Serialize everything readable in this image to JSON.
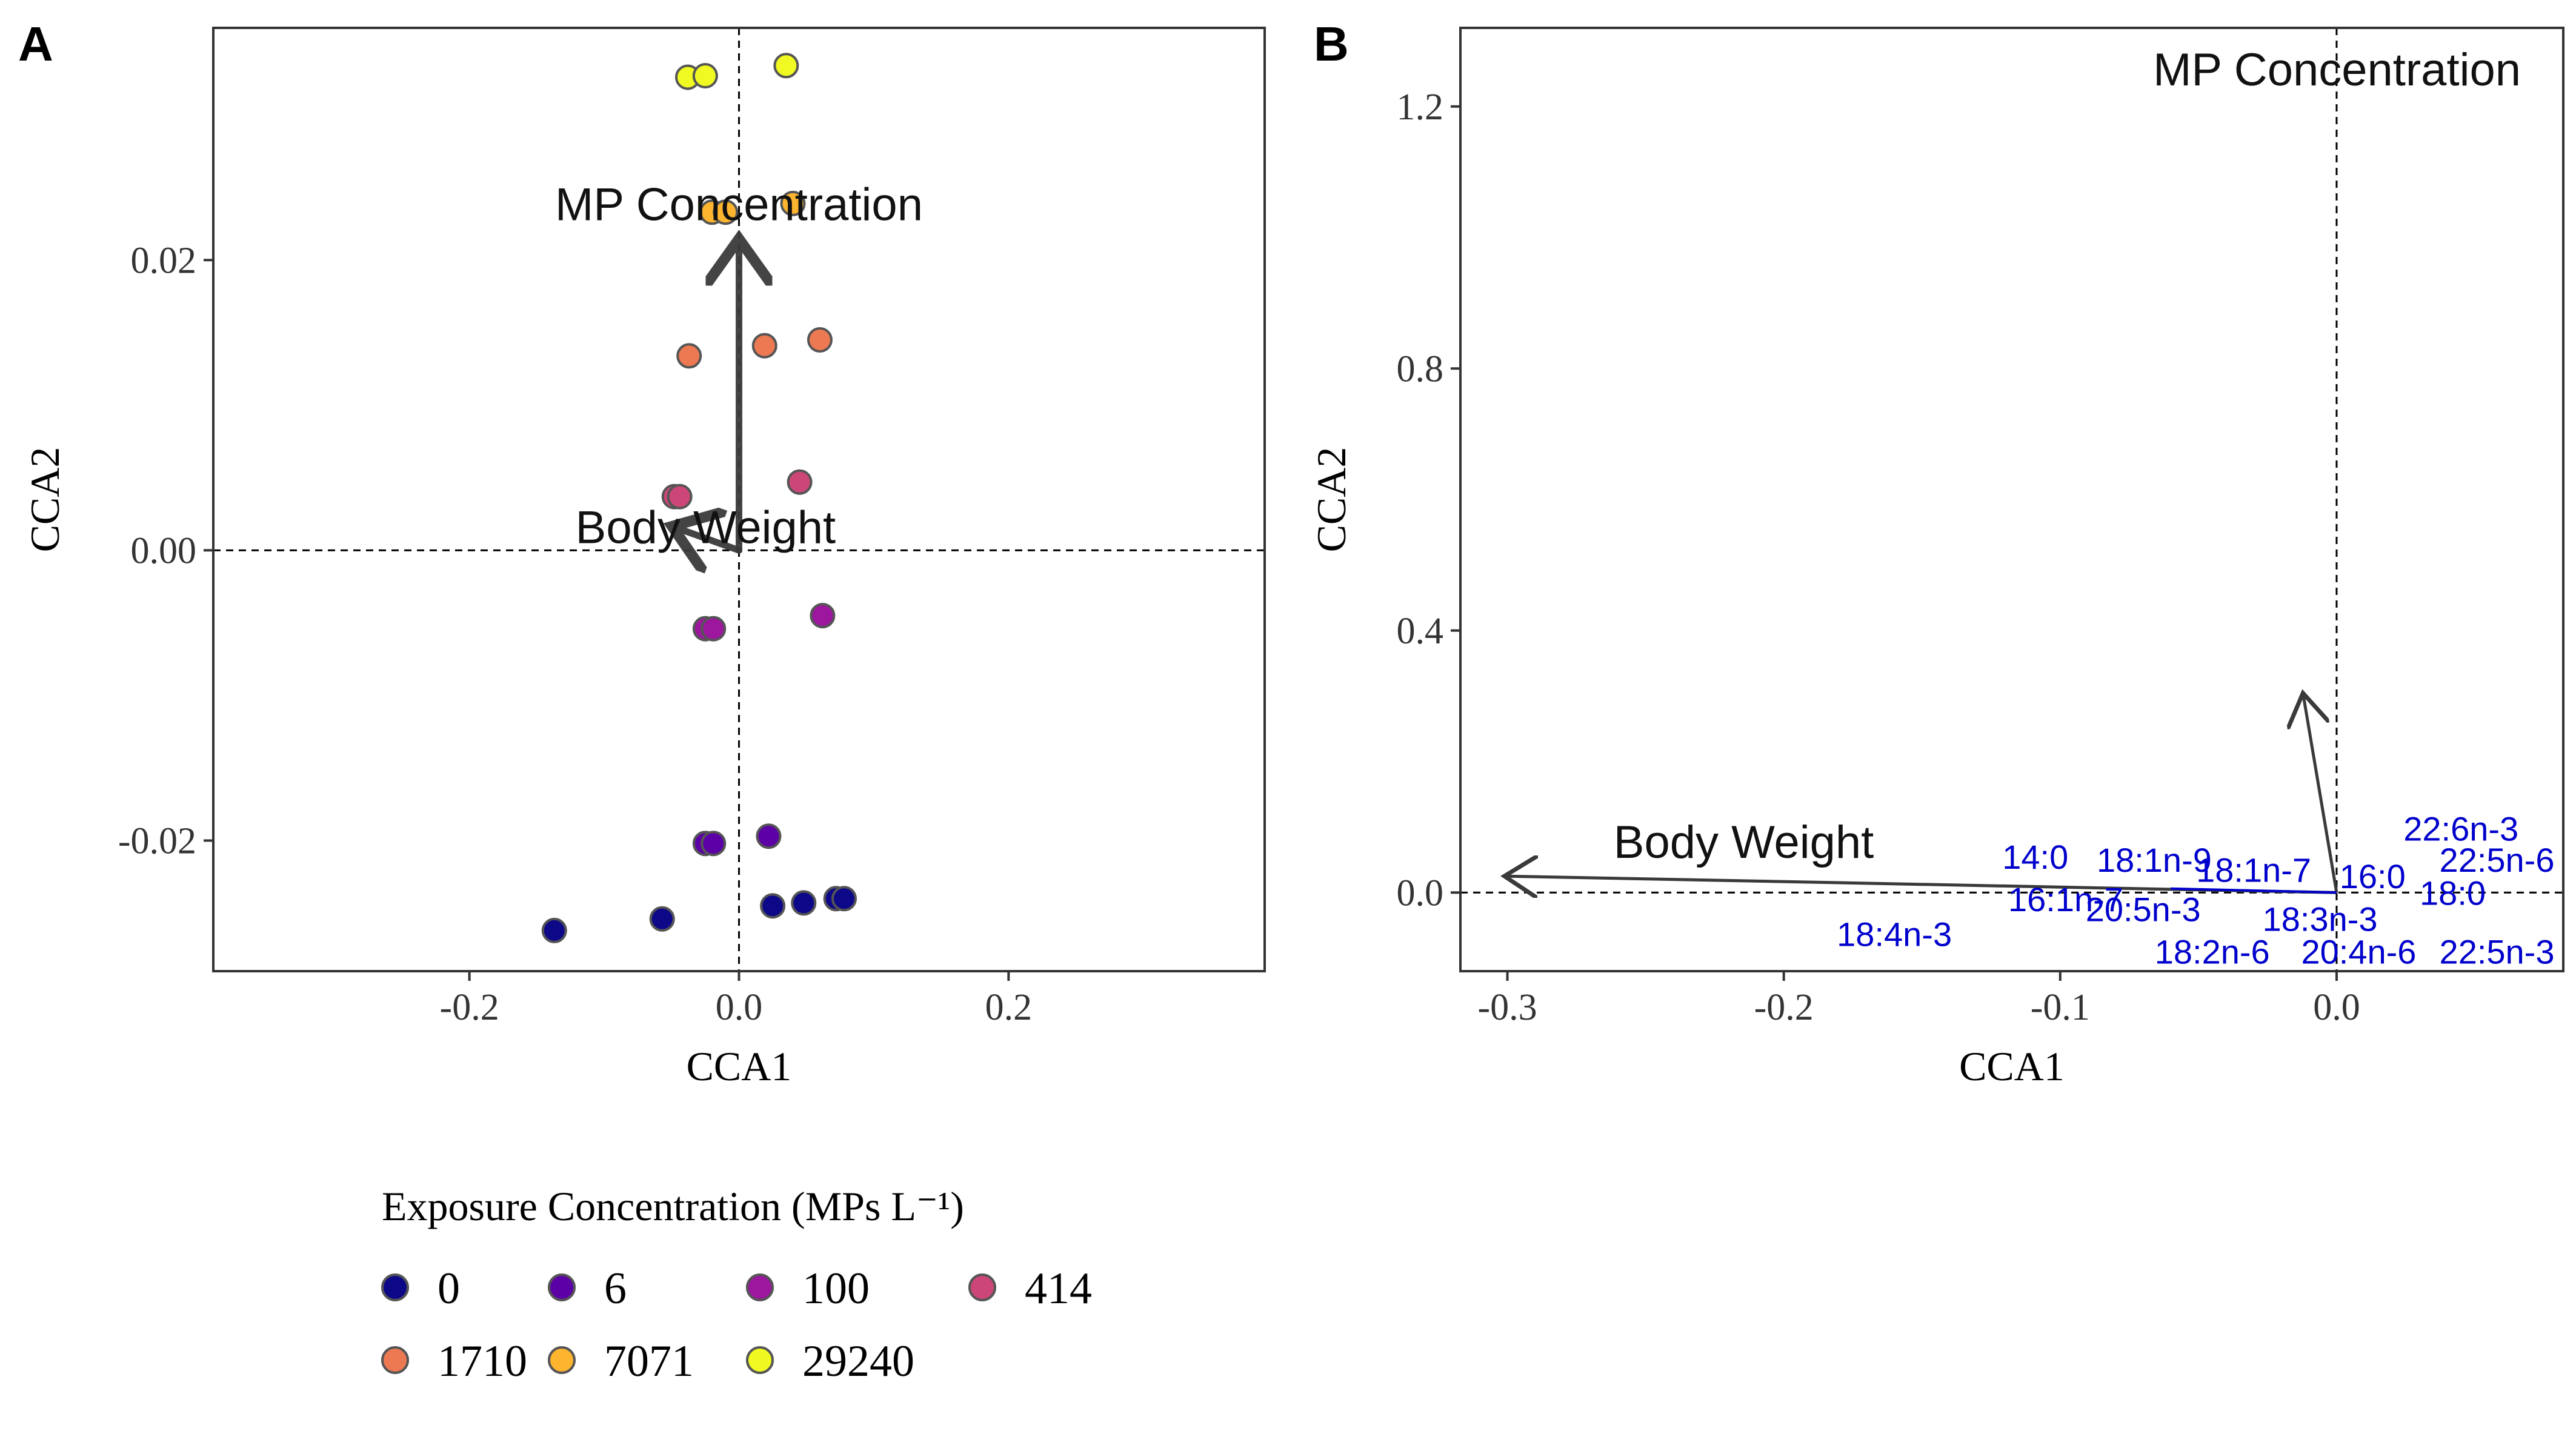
{
  "legend": {
    "title": "Exposure Concentration (MPs L⁻¹)",
    "items": [
      {
        "label": "0",
        "color": "#0d0887"
      },
      {
        "label": "6",
        "color": "#5c01a6"
      },
      {
        "label": "100",
        "color": "#9c179e"
      },
      {
        "label": "414",
        "color": "#cc4778"
      },
      {
        "label": "1710",
        "color": "#ed7953"
      },
      {
        "label": "7071",
        "color": "#fdb42f"
      },
      {
        "label": "29240",
        "color": "#f0f921"
      }
    ]
  },
  "chart_data": [
    {
      "type": "scatter",
      "panel": "A",
      "xlabel": "CCA1",
      "ylabel": "CCA2",
      "xlim": [
        -0.39,
        0.39
      ],
      "ylim": [
        -0.029,
        0.036
      ],
      "xticks": [
        -0.2,
        0.0,
        0.2
      ],
      "xtick_labels": [
        "-0.2",
        "0.0",
        "0.2"
      ],
      "yticks": [
        -0.02,
        0.0,
        0.02
      ],
      "ytick_labels": [
        "-0.02",
        "0.00",
        "0.02"
      ],
      "grid": false,
      "reference_lines": {
        "x": 0,
        "y": 0
      },
      "series": [
        {
          "group": "0",
          "points": [
            [
              -0.137,
              -0.0262
            ],
            [
              -0.057,
              -0.0254
            ],
            [
              0.025,
              -0.0245
            ],
            [
              0.048,
              -0.0243
            ],
            [
              0.072,
              -0.024
            ],
            [
              0.078,
              -0.024
            ]
          ]
        },
        {
          "group": "6",
          "points": [
            [
              -0.025,
              -0.0202
            ],
            [
              -0.019,
              -0.0202
            ],
            [
              0.022,
              -0.0197
            ]
          ]
        },
        {
          "group": "100",
          "points": [
            [
              -0.025,
              -0.0054
            ],
            [
              -0.019,
              -0.0054
            ],
            [
              0.062,
              -0.0045
            ]
          ]
        },
        {
          "group": "414",
          "points": [
            [
              -0.048,
              0.0037
            ],
            [
              -0.044,
              0.0037
            ],
            [
              0.045,
              0.0047
            ]
          ]
        },
        {
          "group": "1710",
          "points": [
            [
              -0.037,
              0.0134
            ],
            [
              0.019,
              0.0141
            ],
            [
              0.06,
              0.0145
            ]
          ]
        },
        {
          "group": "7071",
          "points": [
            [
              -0.02,
              0.0233
            ],
            [
              -0.01,
              0.0233
            ],
            [
              0.04,
              0.0239
            ]
          ]
        },
        {
          "group": "29240",
          "points": [
            [
              -0.038,
              0.0326
            ],
            [
              -0.025,
              0.0327
            ],
            [
              0.035,
              0.0334
            ]
          ]
        }
      ],
      "vectors": [
        {
          "label": "MP Concentration",
          "x": 0.0,
          "y": 0.021
        },
        {
          "label": "Body Weight",
          "x": -0.045,
          "y": 0.0015
        }
      ]
    },
    {
      "type": "scatter",
      "panel": "B",
      "xlabel": "CCA1",
      "ylabel": "CCA2",
      "xlim": [
        -0.317,
        0.082
      ],
      "ylim": [
        -0.12,
        1.32
      ],
      "xticks": [
        -0.3,
        -0.2,
        -0.1,
        0.0
      ],
      "xtick_labels": [
        "-0.3",
        "-0.2",
        "-0.1",
        "0.0"
      ],
      "yticks": [
        0.0,
        0.4,
        0.8,
        1.2
      ],
      "ytick_labels": [
        "0.0",
        "0.4",
        "0.8",
        "1.2"
      ],
      "grid": false,
      "reference_lines": {
        "x": 0,
        "y": 0
      },
      "vectors": [
        {
          "label": "MP Concentration",
          "x": -0.012,
          "y": 0.3
        },
        {
          "label": "Body Weight",
          "x": -0.3,
          "y": 0.025
        }
      ],
      "fatty_acids": [
        {
          "label": "14:0",
          "x": -0.109,
          "y": 0.055
        },
        {
          "label": "18:1n-9",
          "x": -0.066,
          "y": 0.05
        },
        {
          "label": "18:1n-7",
          "x": -0.03,
          "y": 0.035
        },
        {
          "label": "16:0",
          "x": 0.013,
          "y": 0.025
        },
        {
          "label": "22:6n-3",
          "x": 0.045,
          "y": 0.098
        },
        {
          "label": "22:5n-6",
          "x": 0.058,
          "y": 0.05
        },
        {
          "label": "18:0",
          "x": 0.042,
          "y": 0.0
        },
        {
          "label": "16:1n-7",
          "x": -0.098,
          "y": -0.01
        },
        {
          "label": "20:5n-3",
          "x": -0.07,
          "y": -0.025
        },
        {
          "label": "18:3n-3",
          "x": -0.006,
          "y": -0.04
        },
        {
          "label": "18:4n-3",
          "x": -0.16,
          "y": -0.063
        },
        {
          "label": "18:2n-6",
          "x": -0.045,
          "y": -0.09
        },
        {
          "label": "20:4n-6",
          "x": 0.008,
          "y": -0.09
        },
        {
          "label": "22:5n-3",
          "x": 0.058,
          "y": -0.09
        }
      ]
    }
  ]
}
